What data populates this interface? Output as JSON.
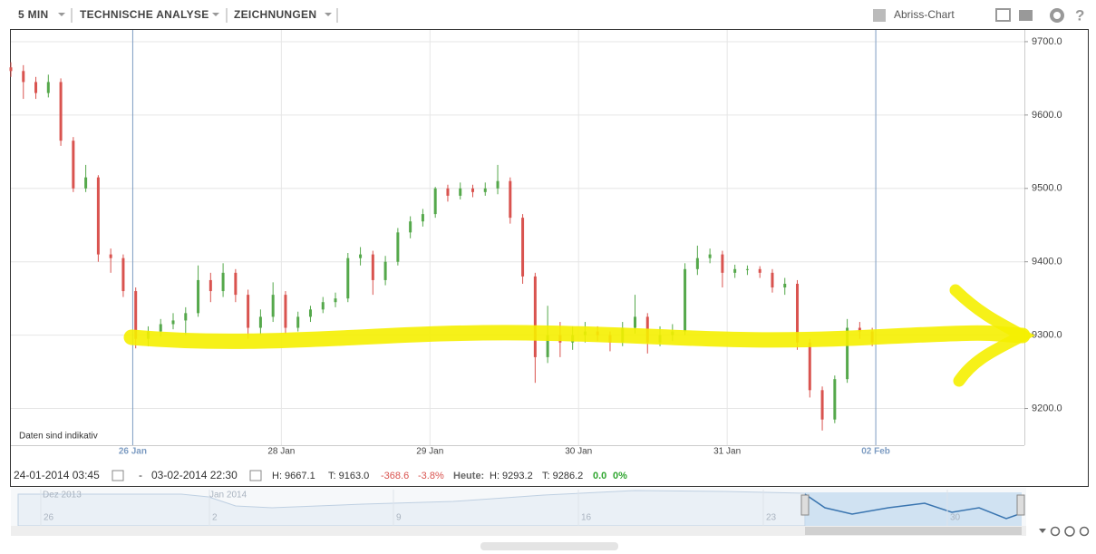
{
  "toolbar": {
    "interval": "5 MIN",
    "analysis": "TECHNISCHE ANALYSE",
    "drawings": "ZEICHNUNGEN",
    "chart_mode": "Abriss-Chart"
  },
  "chart_data": {
    "type": "candlestick",
    "annotation": "Daten sind indikativ",
    "x": [
      -0.82,
      -0.736,
      -0.652,
      -0.568,
      -0.484,
      -0.4,
      -0.316,
      -0.232,
      -0.148,
      -0.064,
      0.02,
      0.104,
      0.188,
      0.272,
      0.356,
      0.44,
      0.524,
      0.608,
      0.692,
      0.776,
      0.86,
      0.944,
      1.028,
      1.112,
      1.196,
      1.28,
      1.364,
      1.448,
      1.532,
      1.616,
      1.7,
      1.784,
      1.868,
      1.952,
      2.036,
      2.12,
      2.204,
      2.288,
      2.372,
      2.456,
      2.54,
      2.624,
      2.708,
      2.792,
      2.876,
      2.96,
      3.044,
      3.128,
      3.212,
      3.296,
      3.38,
      3.464,
      3.548,
      3.632,
      3.716,
      3.8,
      3.884,
      3.968,
      4.052,
      4.136,
      4.22,
      4.304,
      4.388,
      4.472,
      4.556,
      4.64,
      4.724,
      4.808,
      4.892,
      4.976
    ],
    "open": [
      9665,
      9660,
      9645,
      9630,
      9645,
      9565,
      9500,
      9515,
      9410,
      9405,
      9360,
      9295,
      9305,
      9315,
      9320,
      9330,
      9375,
      9360,
      9385,
      9355,
      9310,
      9325,
      9355,
      9310,
      9325,
      9335,
      9345,
      9350,
      9405,
      9410,
      9375,
      9400,
      9440,
      9455,
      9465,
      9500,
      9490,
      9500,
      9495,
      9500,
      9510,
      9460,
      9380,
      9270,
      9300,
      9290,
      9300,
      9305,
      9300,
      9290,
      9310,
      9325,
      9290,
      9300,
      9305,
      9390,
      9405,
      9410,
      9385,
      9390,
      9390,
      9385,
      9365,
      9370,
      9290,
      9225,
      9185,
      9240,
      9310,
      9305
    ],
    "high": [
      9672,
      9668,
      9652,
      9655,
      9650,
      9570,
      9532,
      9518,
      9418,
      9410,
      9365,
      9312,
      9322,
      9330,
      9338,
      9395,
      9385,
      9398,
      9390,
      9362,
      9335,
      9372,
      9360,
      9332,
      9340,
      9352,
      9358,
      9412,
      9420,
      9415,
      9408,
      9446,
      9462,
      9472,
      9502,
      9505,
      9508,
      9505,
      9508,
      9532,
      9515,
      9465,
      9385,
      9340,
      9318,
      9312,
      9318,
      9312,
      9305,
      9318,
      9355,
      9330,
      9312,
      9315,
      9398,
      9422,
      9418,
      9415,
      9396,
      9395,
      9394,
      9390,
      9378,
      9375,
      9295,
      9230,
      9245,
      9322,
      9318,
      9310
    ],
    "low": [
      9652,
      9622,
      9622,
      9624,
      9558,
      9495,
      9495,
      9400,
      9385,
      9352,
      9282,
      9285,
      9298,
      9308,
      9300,
      9325,
      9345,
      9352,
      9345,
      9295,
      9300,
      9318,
      9302,
      9305,
      9318,
      9330,
      9338,
      9345,
      9395,
      9355,
      9368,
      9395,
      9432,
      9448,
      9460,
      9482,
      9485,
      9488,
      9490,
      9492,
      9452,
      9370,
      9235,
      9262,
      9270,
      9280,
      9290,
      9292,
      9278,
      9285,
      9302,
      9275,
      9285,
      9292,
      9300,
      9382,
      9398,
      9365,
      9378,
      9382,
      9378,
      9358,
      9355,
      9280,
      9215,
      9170,
      9180,
      9235,
      9295,
      9285
    ],
    "close": [
      9660,
      9645,
      9630,
      9645,
      9565,
      9500,
      9515,
      9410,
      9405,
      9360,
      9295,
      9305,
      9315,
      9320,
      9330,
      9375,
      9360,
      9385,
      9355,
      9310,
      9325,
      9355,
      9310,
      9325,
      9335,
      9345,
      9350,
      9405,
      9410,
      9375,
      9400,
      9440,
      9455,
      9465,
      9500,
      9490,
      9500,
      9495,
      9500,
      9510,
      9460,
      9380,
      9270,
      9300,
      9290,
      9300,
      9305,
      9300,
      9290,
      9310,
      9325,
      9290,
      9300,
      9305,
      9390,
      9405,
      9410,
      9385,
      9390,
      9390,
      9385,
      9365,
      9370,
      9290,
      9225,
      9185,
      9240,
      9310,
      9305,
      9290
    ],
    "up_color": "#55a84b",
    "down_color": "#d9534f",
    "xlim": [
      -0.82,
      6
    ],
    "xticks": [
      {
        "value": 0,
        "label": "26 Jan"
      },
      {
        "value": 1,
        "label": "28 Jan"
      },
      {
        "value": 2,
        "label": "29 Jan"
      },
      {
        "value": 3,
        "label": "30 Jan"
      },
      {
        "value": 4,
        "label": "31 Jan"
      },
      {
        "value": 5,
        "label": "02 Feb"
      }
    ],
    "ylim": [
      9150,
      9716
    ],
    "yticks": [
      {
        "value": 9700,
        "label": "9700.0"
      },
      {
        "value": 9600,
        "label": "9600.0"
      },
      {
        "value": 9500,
        "label": "9500.0"
      },
      {
        "value": 9400,
        "label": "9400.0"
      },
      {
        "value": 9300,
        "label": "9300.0"
      },
      {
        "value": 9200,
        "label": "9200.0"
      }
    ],
    "grid": true
  },
  "footer": {
    "from": "24-01-2014 03:45",
    "separator": "-",
    "to": "03-02-2014 22:30",
    "high": "H: 9667.1",
    "low": "T: 9163.0",
    "change": "-368.6",
    "change_pct": "-3.8%",
    "today": "Heute:",
    "today_high": "H: 9293.2",
    "today_low": "T: 9286.2",
    "today_change": "0.0",
    "today_pct": "0%"
  },
  "navigator": {
    "month_1": "Dez 2013",
    "month_2": "Jan 2014",
    "days": [
      "26",
      "2",
      "9",
      "16",
      "23",
      "30"
    ]
  }
}
